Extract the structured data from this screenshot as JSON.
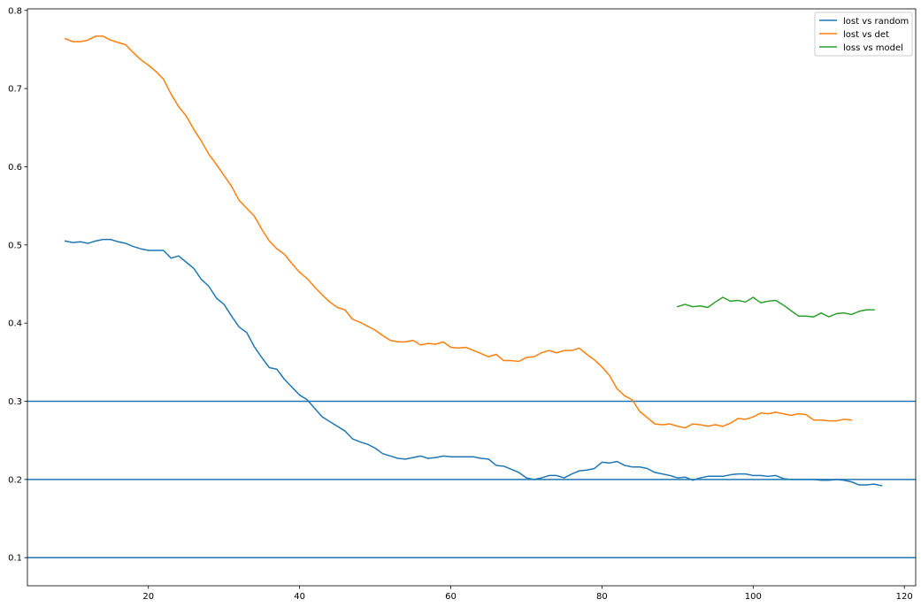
{
  "chart_data": {
    "type": "line",
    "title": "",
    "xlabel": "",
    "ylabel": "",
    "xlim": [
      4,
      121.5
    ],
    "ylim": [
      0.064,
      0.802
    ],
    "xticks": [
      20,
      40,
      60,
      80,
      100,
      120
    ],
    "yticks": [
      0.1,
      0.2,
      0.3,
      0.4,
      0.5,
      0.6,
      0.7,
      0.8
    ],
    "xtick_labels": [
      "20",
      "40",
      "60",
      "80",
      "100",
      "120"
    ],
    "ytick_labels": [
      "0.1",
      "0.2",
      "0.3",
      "0.4",
      "0.5",
      "0.6",
      "0.7",
      "0.8"
    ],
    "grid": false,
    "legend_position": "top-right",
    "hlines": [
      {
        "y": 0.3,
        "color": "#1f77b4"
      },
      {
        "y": 0.2,
        "color": "#1f77b4"
      },
      {
        "y": 0.1,
        "color": "#1f77b4"
      }
    ],
    "series": [
      {
        "name": "lost vs random",
        "color": "#1f77b4",
        "x_start": 9,
        "values": [
          0.505,
          0.503,
          0.504,
          0.502,
          0.505,
          0.507,
          0.507,
          0.504,
          0.502,
          0.498,
          0.495,
          0.493,
          0.493,
          0.493,
          0.483,
          0.486,
          0.478,
          0.47,
          0.456,
          0.447,
          0.432,
          0.424,
          0.409,
          0.395,
          0.388,
          0.37,
          0.356,
          0.343,
          0.341,
          0.328,
          0.318,
          0.308,
          0.302,
          0.291,
          0.28,
          0.274,
          0.268,
          0.262,
          0.252,
          0.248,
          0.245,
          0.24,
          0.233,
          0.23,
          0.227,
          0.226,
          0.228,
          0.23,
          0.227,
          0.228,
          0.23,
          0.229,
          0.229,
          0.229,
          0.229,
          0.227,
          0.226,
          0.218,
          0.217,
          0.213,
          0.209,
          0.202,
          0.2,
          0.202,
          0.205,
          0.205,
          0.202,
          0.207,
          0.211,
          0.212,
          0.214,
          0.222,
          0.221,
          0.223,
          0.218,
          0.216,
          0.216,
          0.214,
          0.209,
          0.207,
          0.205,
          0.202,
          0.203,
          0.199,
          0.202,
          0.204,
          0.204,
          0.204,
          0.206,
          0.207,
          0.207,
          0.205,
          0.205,
          0.204,
          0.205,
          0.201,
          0.2,
          0.2,
          0.2,
          0.2,
          0.199,
          0.199,
          0.2,
          0.199,
          0.197,
          0.193,
          0.193,
          0.194,
          0.192
        ]
      },
      {
        "name": "lost vs det",
        "color": "#ff7f0e",
        "x_start": 9,
        "values": [
          0.764,
          0.76,
          0.76,
          0.762,
          0.767,
          0.767,
          0.762,
          0.759,
          0.756,
          0.746,
          0.737,
          0.73,
          0.722,
          0.712,
          0.693,
          0.677,
          0.665,
          0.648,
          0.633,
          0.616,
          0.603,
          0.589,
          0.575,
          0.557,
          0.547,
          0.537,
          0.52,
          0.505,
          0.495,
          0.488,
          0.476,
          0.465,
          0.457,
          0.446,
          0.436,
          0.427,
          0.42,
          0.417,
          0.405,
          0.401,
          0.396,
          0.391,
          0.384,
          0.378,
          0.376,
          0.376,
          0.378,
          0.372,
          0.374,
          0.373,
          0.376,
          0.369,
          0.368,
          0.369,
          0.365,
          0.361,
          0.357,
          0.36,
          0.352,
          0.352,
          0.351,
          0.356,
          0.357,
          0.362,
          0.365,
          0.362,
          0.365,
          0.365,
          0.368,
          0.36,
          0.353,
          0.344,
          0.333,
          0.316,
          0.307,
          0.302,
          0.287,
          0.279,
          0.271,
          0.27,
          0.271,
          0.268,
          0.266,
          0.271,
          0.27,
          0.268,
          0.27,
          0.268,
          0.272,
          0.278,
          0.277,
          0.28,
          0.285,
          0.284,
          0.286,
          0.284,
          0.282,
          0.284,
          0.283,
          0.276,
          0.276,
          0.275,
          0.275,
          0.277,
          0.276
        ]
      },
      {
        "name": "loss vs model",
        "color": "#2ca02c",
        "x_start": 90,
        "values": [
          0.421,
          0.424,
          0.421,
          0.422,
          0.42,
          0.427,
          0.433,
          0.428,
          0.429,
          0.427,
          0.433,
          0.426,
          0.428,
          0.429,
          0.423,
          0.416,
          0.409,
          0.409,
          0.408,
          0.413,
          0.408,
          0.412,
          0.413,
          0.411,
          0.415,
          0.417,
          0.417
        ]
      }
    ]
  }
}
